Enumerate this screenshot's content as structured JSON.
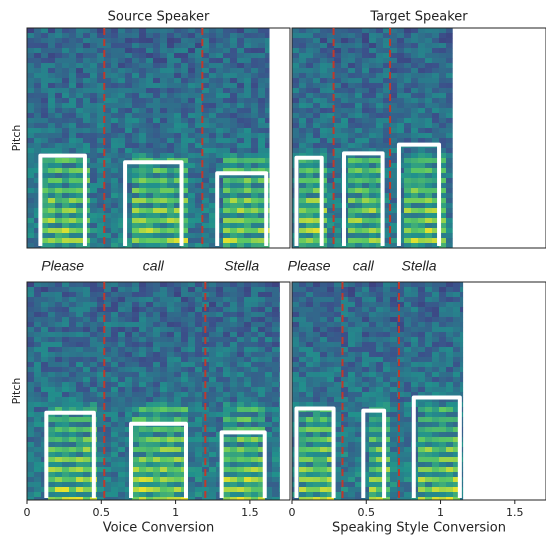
{
  "panels": [
    {
      "title": "Source Speaker",
      "ylabel": "Pitch",
      "xlim": [
        0,
        1.77
      ],
      "ylim": [
        0,
        1
      ],
      "duration": 1.63,
      "boundaries": [
        0.52,
        1.18
      ],
      "contours": [
        {
          "start": 0.09,
          "end": 0.39,
          "level": 0.42
        },
        {
          "start": 0.66,
          "end": 1.04,
          "level": 0.39
        },
        {
          "start": 1.28,
          "end": 1.61,
          "level": 0.34
        }
      ]
    },
    {
      "title": "Target Speaker",
      "xlim": [
        0,
        1.71
      ],
      "ylim": [
        0,
        1
      ],
      "duration": 1.08,
      "boundaries": [
        0.28,
        0.66
      ],
      "contours": [
        {
          "start": 0.03,
          "end": 0.2,
          "level": 0.41
        },
        {
          "start": 0.35,
          "end": 0.61,
          "level": 0.43
        },
        {
          "start": 0.72,
          "end": 0.99,
          "level": 0.47
        }
      ]
    },
    {
      "xlabel": "Voice Conversion",
      "ylabel": "Pitch",
      "xlim": [
        0,
        1.77
      ],
      "ylim": [
        0,
        1
      ],
      "duration": 1.7,
      "xticks": [
        0,
        0.5,
        1,
        1.5
      ],
      "boundaries": [
        0.52,
        1.2
      ],
      "contours": [
        {
          "start": 0.13,
          "end": 0.45,
          "level": 0.4
        },
        {
          "start": 0.7,
          "end": 1.07,
          "level": 0.35
        },
        {
          "start": 1.31,
          "end": 1.6,
          "level": 0.31
        }
      ]
    },
    {
      "xlabel": "Speaking Style Conversion",
      "xlim": [
        0,
        1.71
      ],
      "ylim": [
        0,
        1
      ],
      "duration": 1.15,
      "xticks": [
        0,
        0.5,
        1,
        1.5
      ],
      "boundaries": [
        0.34,
        0.72
      ],
      "contours": [
        {
          "start": 0.03,
          "end": 0.28,
          "level": 0.42
        },
        {
          "start": 0.48,
          "end": 0.62,
          "level": 0.41
        },
        {
          "start": 0.82,
          "end": 1.13,
          "level": 0.47
        }
      ]
    }
  ],
  "words": [
    "Please",
    "call",
    "Stella"
  ],
  "boundary_color": "#c0392b",
  "contour_color": "#ffffff"
}
